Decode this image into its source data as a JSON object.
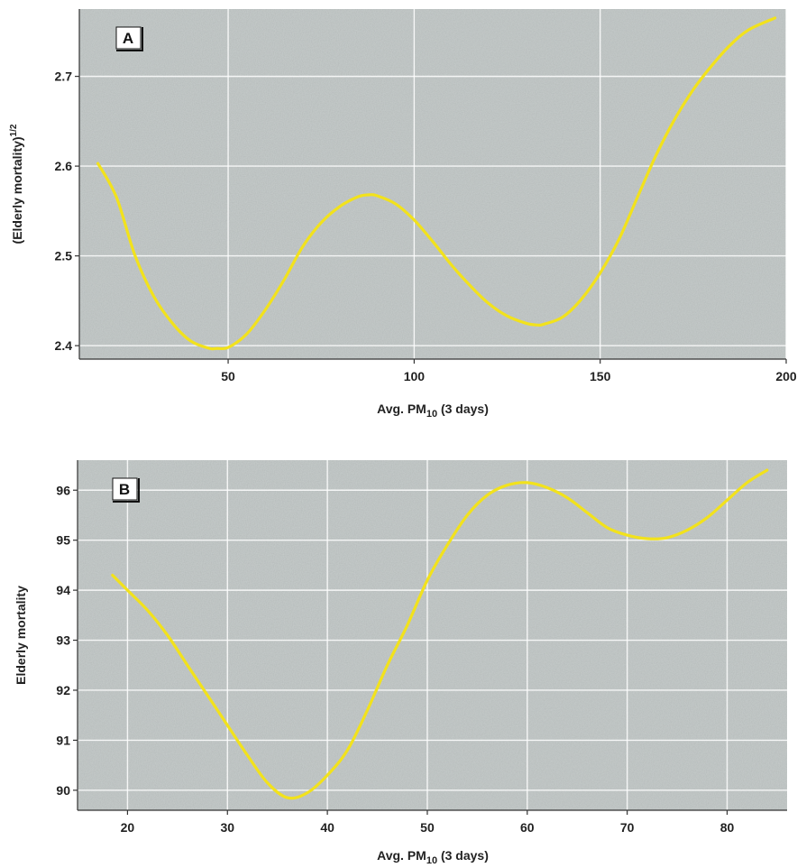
{
  "chart_data": [
    {
      "type": "line",
      "panel_label": "A",
      "xlabel": "Avg. PM",
      "xlabel_sub": "10",
      "xlabel_rest": " (3 days)",
      "ylabel": "(Elderly mortality)",
      "ylabel_sup": "1/2",
      "xlim": [
        10,
        200
      ],
      "ylim": [
        2.385,
        2.775
      ],
      "xticks": [
        50,
        100,
        150,
        200
      ],
      "yticks": [
        2.4,
        2.5,
        2.6,
        2.7
      ],
      "ytick_labels": [
        "2.4",
        "2.5",
        "2.6",
        "2.7"
      ],
      "grid": true,
      "background_color": "#c7cdcc",
      "line_color": "#f2e21c",
      "series": [
        {
          "x": [
            15,
            20,
            25,
            30,
            35,
            40,
            45,
            47,
            50,
            55,
            60,
            65,
            70,
            75,
            80,
            85,
            88,
            90,
            95,
            100,
            105,
            110,
            115,
            120,
            125,
            130,
            133,
            135,
            140,
            145,
            150,
            155,
            160,
            165,
            170,
            175,
            180,
            185,
            190,
            197
          ],
          "y": [
            2.603,
            2.565,
            2.5,
            2.455,
            2.425,
            2.405,
            2.397,
            2.397,
            2.398,
            2.413,
            2.44,
            2.473,
            2.51,
            2.537,
            2.555,
            2.566,
            2.568,
            2.567,
            2.558,
            2.54,
            2.516,
            2.49,
            2.467,
            2.447,
            2.433,
            2.425,
            2.423,
            2.424,
            2.432,
            2.452,
            2.481,
            2.518,
            2.565,
            2.612,
            2.652,
            2.685,
            2.712,
            2.735,
            2.752,
            2.765
          ]
        }
      ]
    },
    {
      "type": "line",
      "panel_label": "B",
      "xlabel": "Avg. PM",
      "xlabel_sub": "10",
      "xlabel_rest": " (3 days)",
      "ylabel": "Elderly mortality",
      "ylabel_sup": "",
      "xlim": [
        15,
        86
      ],
      "ylim": [
        89.6,
        96.6
      ],
      "xticks": [
        20,
        30,
        40,
        50,
        60,
        70,
        80
      ],
      "yticks": [
        90,
        91,
        92,
        93,
        94,
        95,
        96
      ],
      "ytick_labels": [
        "90",
        "91",
        "92",
        "93",
        "94",
        "95",
        "96"
      ],
      "grid": true,
      "background_color": "#c7cdcc",
      "line_color": "#f2e21c",
      "series": [
        {
          "x": [
            18.5,
            20,
            22,
            24,
            26,
            28,
            30,
            32,
            34,
            36,
            38,
            40,
            42,
            44,
            46,
            48,
            50,
            52,
            54,
            56,
            58,
            60,
            62,
            64,
            66,
            68,
            70,
            72,
            74,
            76,
            78,
            80,
            82,
            84
          ],
          "y": [
            94.3,
            94.0,
            93.6,
            93.1,
            92.5,
            91.9,
            91.3,
            90.7,
            90.15,
            89.85,
            89.95,
            90.3,
            90.8,
            91.6,
            92.5,
            93.3,
            94.2,
            94.9,
            95.5,
            95.9,
            96.1,
            96.15,
            96.05,
            95.85,
            95.55,
            95.25,
            95.1,
            95.03,
            95.05,
            95.2,
            95.45,
            95.8,
            96.15,
            96.4
          ]
        }
      ]
    }
  ]
}
